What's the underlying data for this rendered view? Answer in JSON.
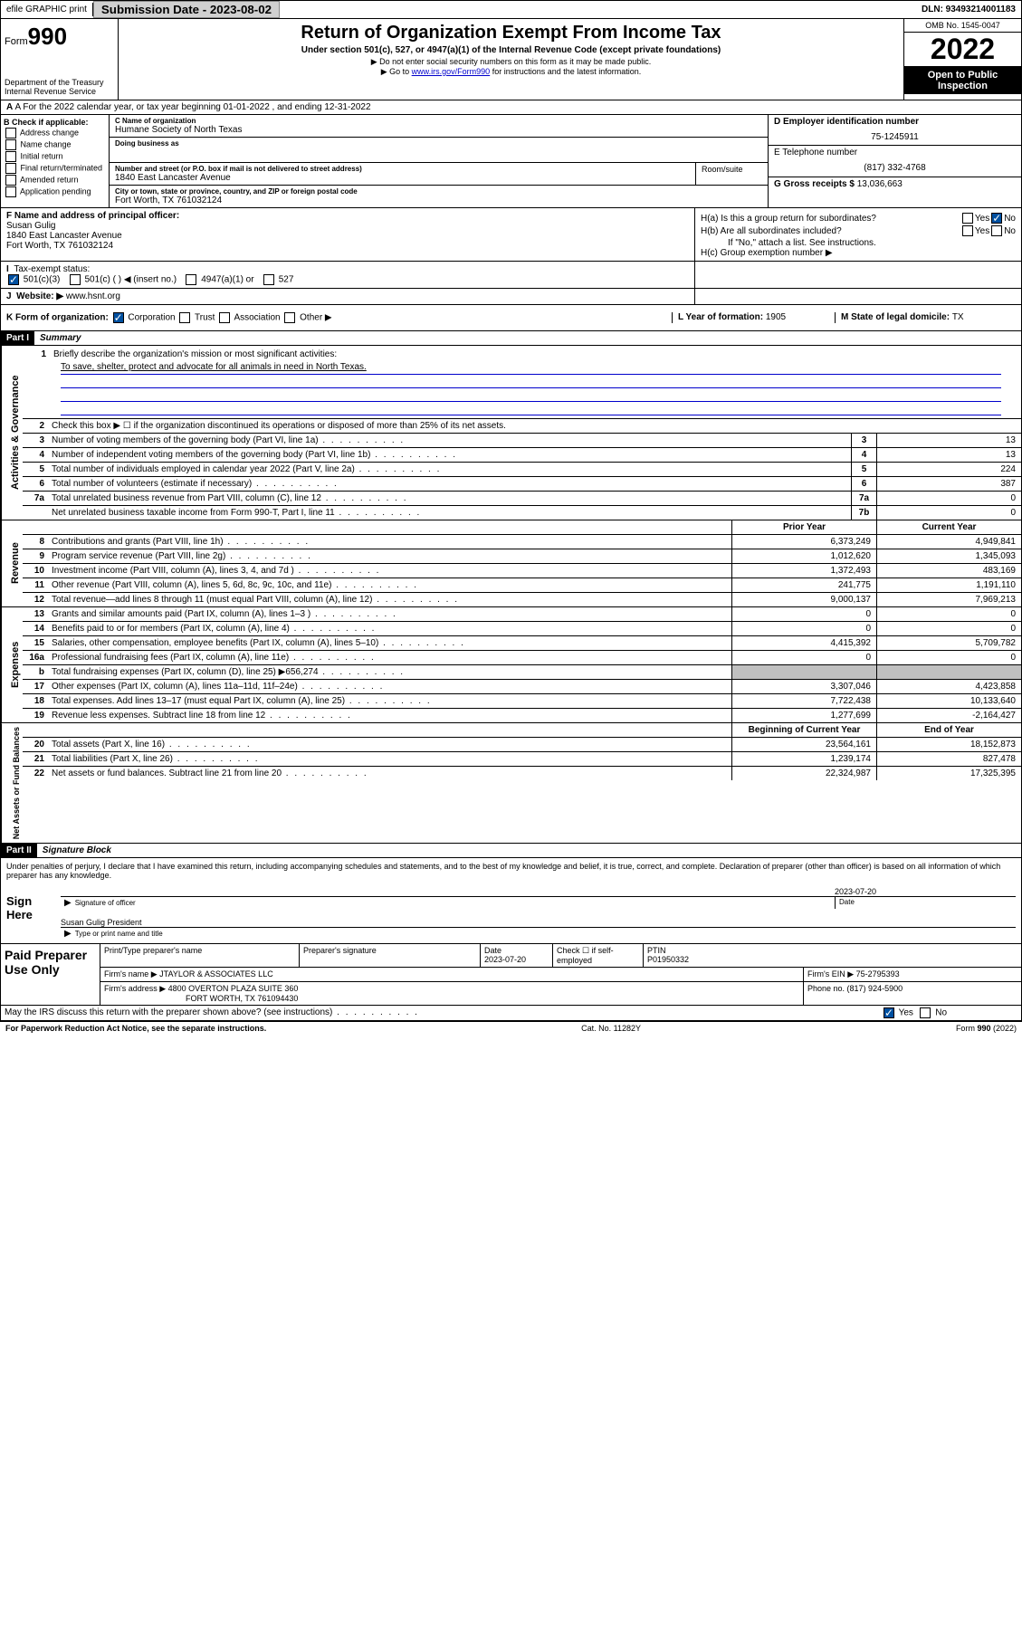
{
  "topbar": {
    "efile": "efile GRAPHIC print",
    "sub_label": "Submission Date - 2023-08-02",
    "dln": "DLN: 93493214001183"
  },
  "header": {
    "form_label": "Form",
    "form_num": "990",
    "dept": "Department of the Treasury Internal Revenue Service",
    "title": "Return of Organization Exempt From Income Tax",
    "sub1": "Under section 501(c), 527, or 4947(a)(1) of the Internal Revenue Code (except private foundations)",
    "sub2": "▶ Do not enter social security numbers on this form as it may be made public.",
    "sub3_pre": "▶ Go to ",
    "sub3_link": "www.irs.gov/Form990",
    "sub3_post": " for instructions and the latest information.",
    "omb": "OMB No. 1545-0047",
    "year": "2022",
    "open": "Open to Public Inspection"
  },
  "row_a": "A For the 2022 calendar year, or tax year beginning 01-01-2022   , and ending 12-31-2022",
  "section_b": {
    "label": "B Check if applicable:",
    "opts": [
      "Address change",
      "Name change",
      "Initial return",
      "Final return/terminated",
      "Amended return",
      "Application pending"
    ]
  },
  "section_c": {
    "name_label": "C Name of organization",
    "name": "Humane Society of North Texas",
    "dba_label": "Doing business as",
    "dba": "",
    "addr_label": "Number and street (or P.O. box if mail is not delivered to street address)",
    "addr": "1840 East Lancaster Avenue",
    "suite_label": "Room/suite",
    "city_label": "City or town, state or province, country, and ZIP or foreign postal code",
    "city": "Fort Worth, TX  761032124"
  },
  "section_d": {
    "label": "D Employer identification number",
    "val": "75-1245911"
  },
  "section_e": {
    "label": "E Telephone number",
    "val": "(817) 332-4768"
  },
  "section_g": {
    "label": "G Gross receipts $ ",
    "val": "13,036,663"
  },
  "section_f": {
    "label": "F Name and address of principal officer:",
    "name": "Susan Gulig",
    "addr1": "1840 East Lancaster Avenue",
    "addr2": "Fort Worth, TX  761032124"
  },
  "section_h": {
    "ha": "H(a)  Is this a group return for subordinates?",
    "hb": "H(b)  Are all subordinates included?",
    "hb_note": "If \"No,\" attach a list. See instructions.",
    "hc": "H(c)  Group exemption number ▶"
  },
  "row_i": {
    "label": "Tax-exempt status:",
    "opt1": "501(c)(3)",
    "opt2": "501(c) (   ) ◀ (insert no.)",
    "opt3": "4947(a)(1) or",
    "opt4": "527"
  },
  "row_j": {
    "label": "Website: ▶ ",
    "val": "www.hsnt.org"
  },
  "row_k": {
    "label": "K Form of organization:",
    "opts": [
      "Corporation",
      "Trust",
      "Association",
      "Other ▶"
    ],
    "year_label": "L Year of formation: ",
    "year": "1905",
    "state_label": "M State of legal domicile: ",
    "state": "TX"
  },
  "part1": {
    "num": "Part I",
    "title": "Summary"
  },
  "summary": {
    "line1_label": "Briefly describe the organization's mission or most significant activities:",
    "line1_val": "To save, shelter, protect and advocate for all animals in need in North Texas.",
    "line2": "Check this box ▶ ☐  if the organization discontinued its operations or disposed of more than 25% of its net assets.",
    "rows_gov": [
      {
        "n": "3",
        "d": "Number of voting members of the governing body (Part VI, line 1a)",
        "b": "3",
        "v": "13"
      },
      {
        "n": "4",
        "d": "Number of independent voting members of the governing body (Part VI, line 1b)",
        "b": "4",
        "v": "13"
      },
      {
        "n": "5",
        "d": "Total number of individuals employed in calendar year 2022 (Part V, line 2a)",
        "b": "5",
        "v": "224"
      },
      {
        "n": "6",
        "d": "Total number of volunteers (estimate if necessary)",
        "b": "6",
        "v": "387"
      },
      {
        "n": "7a",
        "d": "Total unrelated business revenue from Part VIII, column (C), line 12",
        "b": "7a",
        "v": "0"
      },
      {
        "n": "",
        "d": "Net unrelated business taxable income from Form 990-T, Part I, line 11",
        "b": "7b",
        "v": "0"
      }
    ],
    "hdr_prior": "Prior Year",
    "hdr_curr": "Current Year",
    "rows_rev": [
      {
        "n": "8",
        "d": "Contributions and grants (Part VIII, line 1h)",
        "p": "6,373,249",
        "c": "4,949,841"
      },
      {
        "n": "9",
        "d": "Program service revenue (Part VIII, line 2g)",
        "p": "1,012,620",
        "c": "1,345,093"
      },
      {
        "n": "10",
        "d": "Investment income (Part VIII, column (A), lines 3, 4, and 7d )",
        "p": "1,372,493",
        "c": "483,169"
      },
      {
        "n": "11",
        "d": "Other revenue (Part VIII, column (A), lines 5, 6d, 8c, 9c, 10c, and 11e)",
        "p": "241,775",
        "c": "1,191,110"
      },
      {
        "n": "12",
        "d": "Total revenue—add lines 8 through 11 (must equal Part VIII, column (A), line 12)",
        "p": "9,000,137",
        "c": "7,969,213"
      }
    ],
    "rows_exp": [
      {
        "n": "13",
        "d": "Grants and similar amounts paid (Part IX, column (A), lines 1–3 )",
        "p": "0",
        "c": "0"
      },
      {
        "n": "14",
        "d": "Benefits paid to or for members (Part IX, column (A), line 4)",
        "p": "0",
        "c": "0"
      },
      {
        "n": "15",
        "d": "Salaries, other compensation, employee benefits (Part IX, column (A), lines 5–10)",
        "p": "4,415,392",
        "c": "5,709,782"
      },
      {
        "n": "16a",
        "d": "Professional fundraising fees (Part IX, column (A), line 11e)",
        "p": "0",
        "c": "0"
      },
      {
        "n": "b",
        "d": "Total fundraising expenses (Part IX, column (D), line 25) ▶656,274",
        "p": "",
        "c": "",
        "gray": true
      },
      {
        "n": "17",
        "d": "Other expenses (Part IX, column (A), lines 11a–11d, 11f–24e)",
        "p": "3,307,046",
        "c": "4,423,858"
      },
      {
        "n": "18",
        "d": "Total expenses. Add lines 13–17 (must equal Part IX, column (A), line 25)",
        "p": "7,722,438",
        "c": "10,133,640"
      },
      {
        "n": "19",
        "d": "Revenue less expenses. Subtract line 18 from line 12",
        "p": "1,277,699",
        "c": "-2,164,427"
      }
    ],
    "hdr_beg": "Beginning of Current Year",
    "hdr_end": "End of Year",
    "rows_net": [
      {
        "n": "20",
        "d": "Total assets (Part X, line 16)",
        "p": "23,564,161",
        "c": "18,152,873"
      },
      {
        "n": "21",
        "d": "Total liabilities (Part X, line 26)",
        "p": "1,239,174",
        "c": "827,478"
      },
      {
        "n": "22",
        "d": "Net assets or fund balances. Subtract line 21 from line 20",
        "p": "22,324,987",
        "c": "17,325,395"
      }
    ]
  },
  "part2": {
    "num": "Part II",
    "title": "Signature Block"
  },
  "sig": {
    "decl": "Under penalties of perjury, I declare that I have examined this return, including accompanying schedules and statements, and to the best of my knowledge and belief, it is true, correct, and complete. Declaration of preparer (other than officer) is based on all information of which preparer has any knowledge.",
    "sign_here": "Sign Here",
    "date": "2023-07-20",
    "sig_label": "Signature of officer",
    "date_label": "Date",
    "name": "Susan Gulig  President",
    "name_label": "Type or print name and title"
  },
  "prep": {
    "title": "Paid Preparer Use Only",
    "h1": "Print/Type preparer's name",
    "h2": "Preparer's signature",
    "h3": "Date",
    "h3v": "2023-07-20",
    "h4": "Check ☐ if self-employed",
    "h5": "PTIN",
    "h5v": "P01950332",
    "firm_label": "Firm's name    ▶ ",
    "firm": "JTAYLOR & ASSOCIATES LLC",
    "ein_label": "Firm's EIN ▶ ",
    "ein": "75-2795393",
    "addr_label": "Firm's address ▶ ",
    "addr1": "4800 OVERTON PLAZA SUITE 360",
    "addr2": "FORT WORTH, TX  761094430",
    "phone_label": "Phone no. ",
    "phone": "(817) 924-5900"
  },
  "discuss": "May the IRS discuss this return with the preparer shown above? (see instructions)",
  "footer": {
    "left": "For Paperwork Reduction Act Notice, see the separate instructions.",
    "mid": "Cat. No. 11282Y",
    "right": "Form 990 (2022)"
  }
}
